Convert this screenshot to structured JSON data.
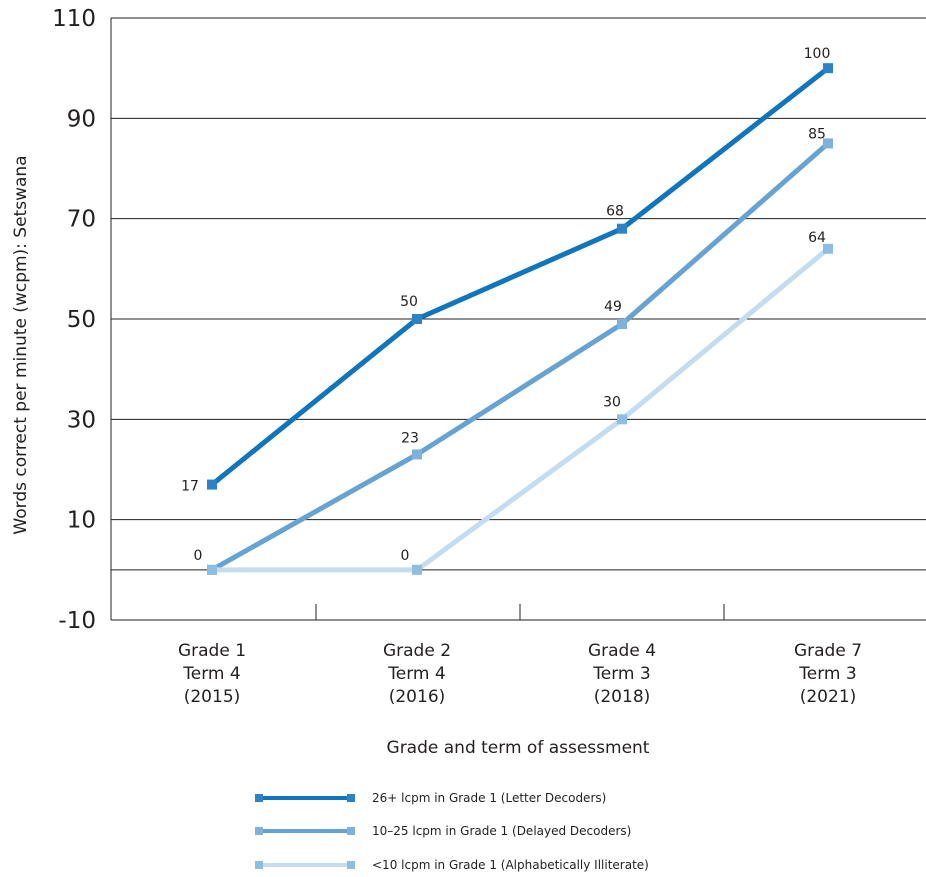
{
  "chart_data": {
    "type": "line",
    "xlabel": "Grade and term of assessment",
    "ylabel": "Words correct per minute (wcpm): Setswana",
    "ylim": [
      -10,
      110
    ],
    "yticks": [
      -10,
      10,
      30,
      50,
      70,
      90,
      110
    ],
    "grid": "horizontal",
    "legend_position": "bottom",
    "categories": [
      [
        "Grade 1",
        "Term 4",
        "(2015)"
      ],
      [
        "Grade 2",
        "Term 4",
        "(2016)"
      ],
      [
        "Grade 4",
        "Term 3",
        "(2018)"
      ],
      [
        "Grade 7",
        "Term 3",
        "(2021)"
      ]
    ],
    "series": [
      {
        "name": "26+ lcpm in Grade 1 (Letter Decoders)",
        "values": [
          17,
          50,
          68,
          100
        ],
        "labels": [
          "17",
          "50",
          "68",
          "100"
        ],
        "color": "#0f75bc",
        "marker_color": "#2b83c6"
      },
      {
        "name": "10–25 lcpm in Grade 1 (Delayed Decoders)",
        "values": [
          0,
          23,
          49,
          85
        ],
        "labels": [
          "0",
          "23",
          "49",
          "85"
        ],
        "color": "#66a3d2",
        "marker_color": "#7fb2db"
      },
      {
        "name": "<10 lcpm in Grade 1 (Alphabetically Illiterate)",
        "values": [
          0,
          0,
          30,
          64
        ],
        "labels": [
          "",
          "0",
          "30",
          "64"
        ],
        "color": "#c4dcef",
        "marker_color": "#8ebde2"
      }
    ]
  }
}
